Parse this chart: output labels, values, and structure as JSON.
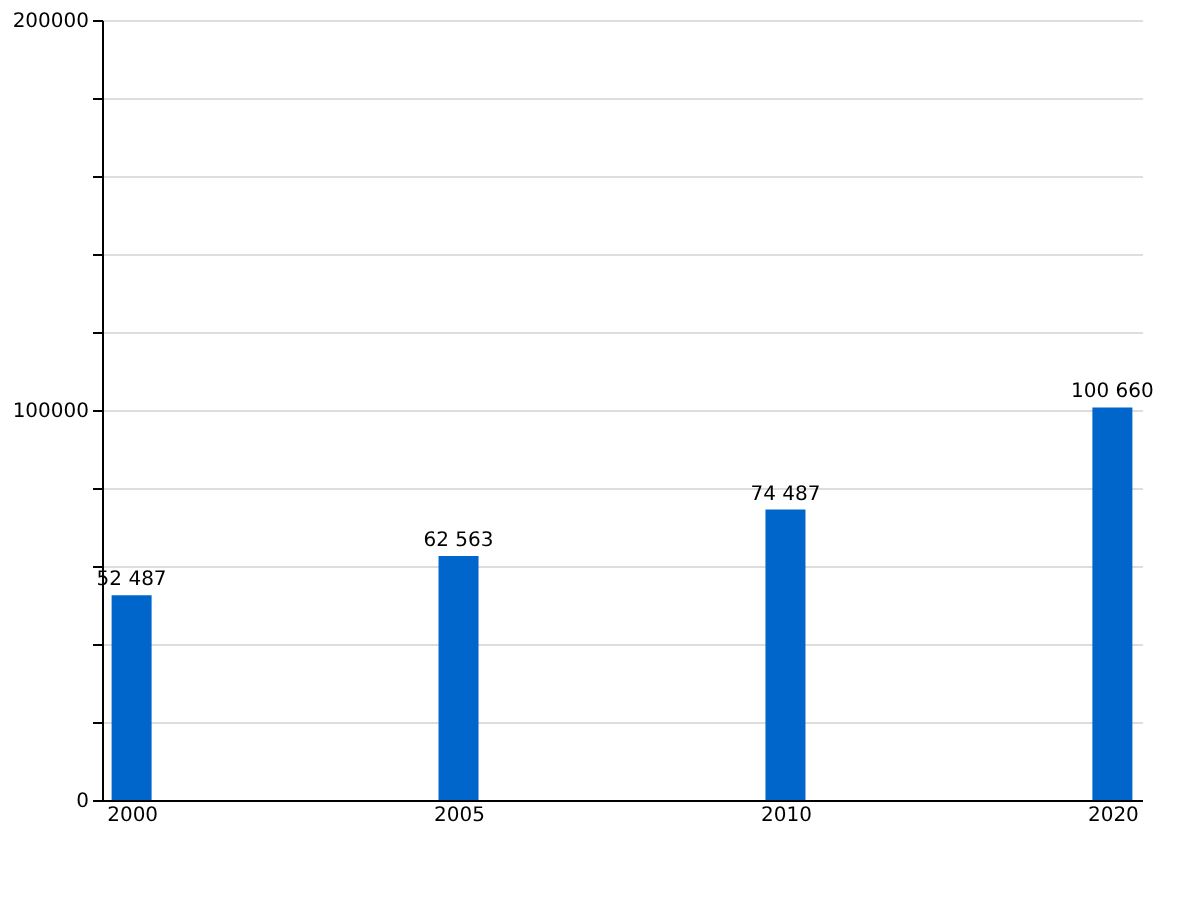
{
  "chart_data": {
    "type": "bar",
    "categories": [
      "2000",
      "2005",
      "2010",
      "2020"
    ],
    "values": [
      52487,
      62563,
      74487,
      100660
    ],
    "color": "#0066cc",
    "value_labels": [
      "52 487",
      "62 563",
      "74 487",
      "100 660"
    ],
    "ylim": [
      0,
      200000
    ],
    "yticks": [
      0,
      {
        "value": 20000,
        "label": null
      },
      {
        "value": 40000,
        "label": null
      },
      {
        "value": 60000,
        "label": null
      },
      {
        "value": 80000,
        "label": null
      },
      100000,
      {
        "value": 120000,
        "label": null
      },
      {
        "value": 140000,
        "label": null
      },
      {
        "value": 160000,
        "label": null
      },
      {
        "value": 180000,
        "label": null
      },
      200000
    ],
    "grid": true
  }
}
